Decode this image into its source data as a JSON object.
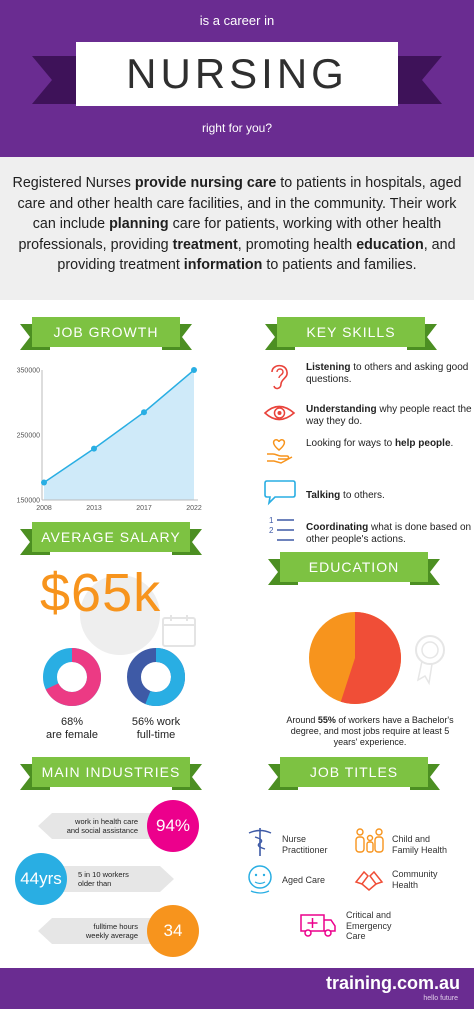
{
  "header": {
    "pre": "is a career in",
    "title": "NURSING",
    "post": "right for you?"
  },
  "intro": {
    "parts": [
      {
        "text": "Registered Nurses ",
        "bold": false
      },
      {
        "text": "provide nursing care",
        "bold": true
      },
      {
        "text": " to patients in hospitals, aged care and other health care facilities, and in the community. Their work can include ",
        "bold": false
      },
      {
        "text": "planning",
        "bold": true
      },
      {
        "text": " care for patients, working with other health professionals, providing ",
        "bold": false
      },
      {
        "text": "treatment",
        "bold": true
      },
      {
        "text": ", promoting health ",
        "bold": false
      },
      {
        "text": "education",
        "bold": true
      },
      {
        "text": ", and providing treatment ",
        "bold": false
      },
      {
        "text": "information",
        "bold": true
      },
      {
        "text": " to patients and families.",
        "bold": false
      }
    ]
  },
  "sections": {
    "job_growth": "JOB GROWTH",
    "key_skills": "KEY SKILLS",
    "average_salary": "AVERAGE SALARY",
    "education": "EDUCATION",
    "main_industries": "MAIN INDUSTRIES",
    "job_titles": "JOB TITLES"
  },
  "chart_data": {
    "type": "area",
    "title": "",
    "x": [
      "2008",
      "2013",
      "2017",
      "2022"
    ],
    "values": [
      177000,
      229000,
      285000,
      350000
    ],
    "yticks": [
      "150000",
      "250000",
      "350000"
    ],
    "ylim": [
      150000,
      350000
    ],
    "grid": false,
    "colors": {
      "fill": "#cfeaf9",
      "line": "#29aee3",
      "point": "#29aee3"
    }
  },
  "skills": [
    {
      "icon": "ear-icon",
      "bold": "Listening",
      "text": " to others and asking good questions.",
      "bold_after": ""
    },
    {
      "icon": "eye-icon",
      "bold": "Understanding",
      "text": " why people react the way they do.",
      "bold_after": ""
    },
    {
      "icon": "heart-hand-icon",
      "bold": "",
      "text": "Looking for ways to ",
      "bold_after": "help people",
      "tail": "."
    },
    {
      "icon": "speech-bubble-icon",
      "bold": "Talking",
      "text": " to others.",
      "bold_after": ""
    },
    {
      "icon": "numbered-list-icon",
      "bold": "Coordinating",
      "text": " what is done based on other people's actions.",
      "bold_after": ""
    }
  ],
  "salary": {
    "value": "$65k",
    "female_label": "68%\nare female",
    "female_pct": 68,
    "fulltime_label": "56% work\nfull-time",
    "fulltime_pct": 56
  },
  "education": {
    "pie_pct": 55,
    "text_pre": "Around ",
    "text_bold": "55%",
    "text_post": " of workers have a Bachelor's degree, and most jobs require at least 5 years' experience.",
    "colors": {
      "major": "#f04e37",
      "minor": "#f7941d"
    }
  },
  "industries": [
    {
      "text": "work in health care\nand social assistance",
      "value": "94%",
      "color": "#ec008c"
    },
    {
      "text": "5 in 10 workers\nolder than",
      "value": "44yrs",
      "color": "#29aee3"
    },
    {
      "text": "fulltime hours\nweekly average",
      "value": "34",
      "color": "#f7941d"
    }
  ],
  "job_titles": [
    {
      "icon": "caduceus-icon",
      "label": "Nurse\nPractitioner"
    },
    {
      "icon": "family-icon",
      "label": "Child and\nFamily Health"
    },
    {
      "icon": "elderly-person-icon",
      "label": "Aged Care"
    },
    {
      "icon": "helping-hands-icon",
      "label": "Community\nHealth"
    },
    {
      "icon": "ambulance-icon",
      "label": "Critical and\nEmergency\nCare"
    }
  ],
  "footer": {
    "brand": "training.com.au",
    "tagline": "hello future"
  }
}
